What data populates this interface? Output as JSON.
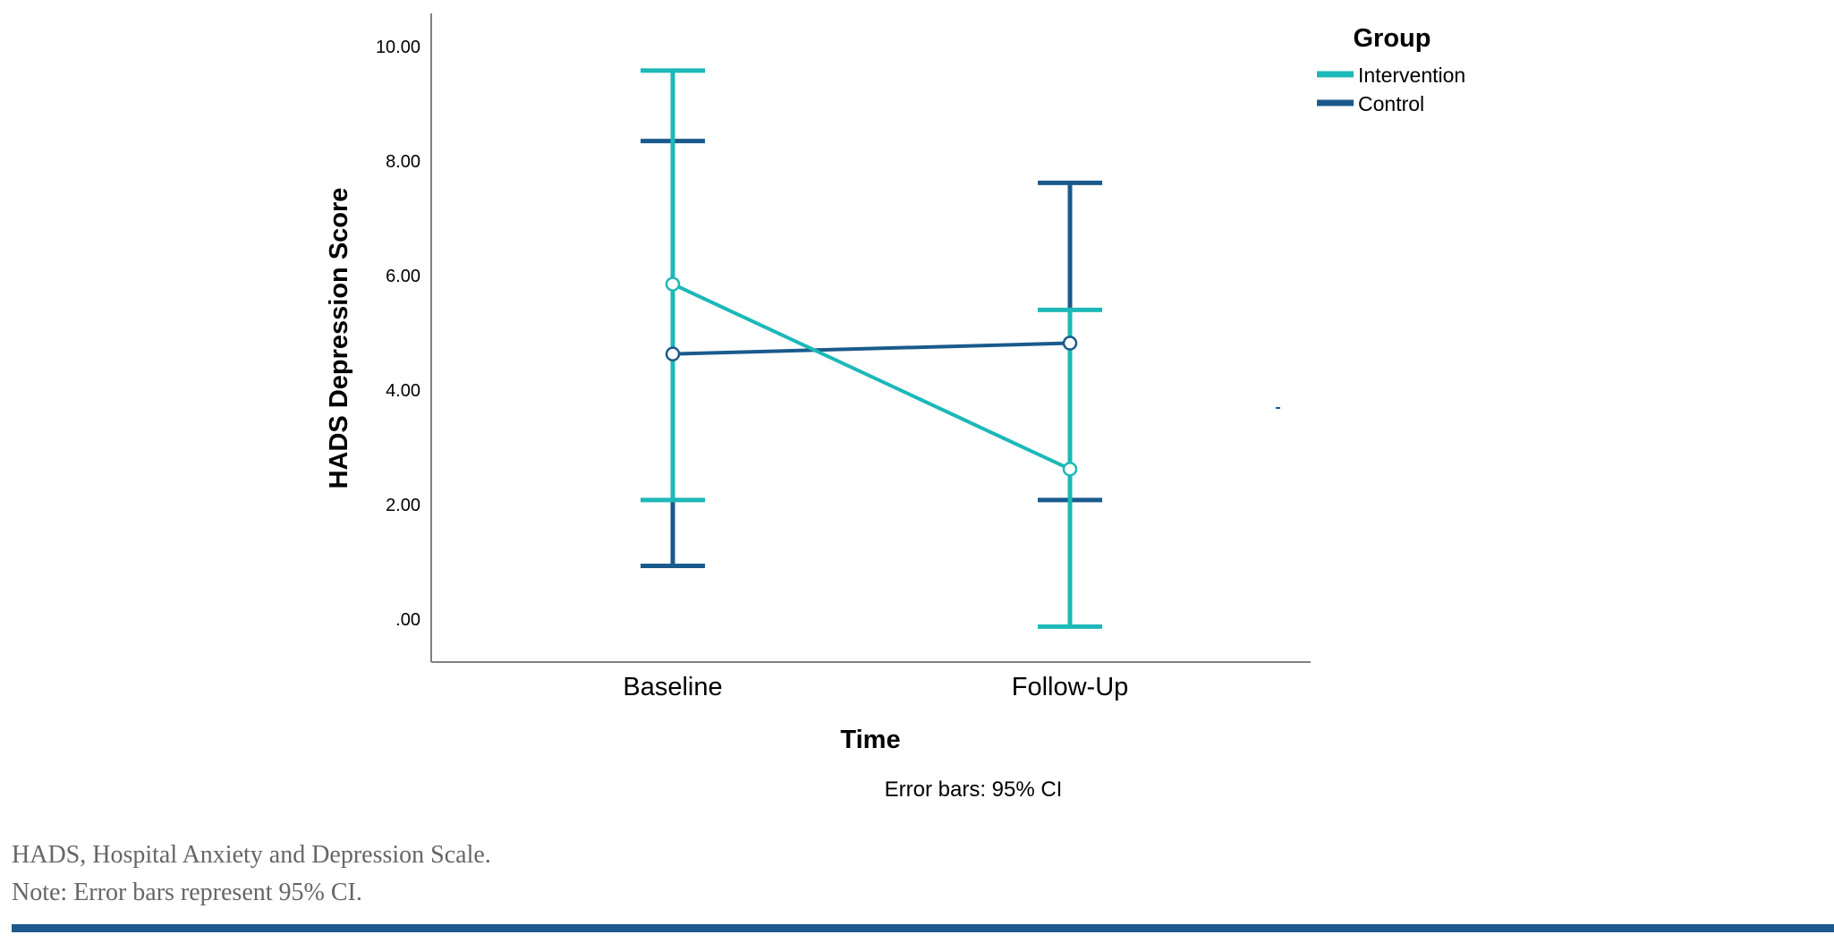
{
  "chart_data": {
    "type": "line",
    "xlabel": "Time",
    "ylabel": "HADS Depression Score",
    "categories": [
      "Baseline",
      "Follow-Up"
    ],
    "ylim": [
      -0.7,
      10.6
    ],
    "yticks": [
      0,
      2,
      4,
      6,
      8,
      10
    ],
    "ytick_labels": [
      ".00",
      "2.00",
      "4.00",
      "6.00",
      "8.00",
      "10.00"
    ],
    "legend": {
      "title": "Group",
      "placement": "top-right"
    },
    "series": [
      {
        "name": "Intervention",
        "color": "#1db8b8",
        "values": [
          5.85,
          2.62
        ],
        "ci_lower": [
          2.08,
          -0.13
        ],
        "ci_upper": [
          9.58,
          5.4
        ]
      },
      {
        "name": "Control",
        "color": "#1a5a8c",
        "values": [
          4.63,
          4.82
        ],
        "ci_lower": [
          0.93,
          2.08
        ],
        "ci_upper": [
          8.35,
          7.62
        ]
      }
    ],
    "annotation": "Error bars: 95% CI",
    "grid": false
  },
  "captions": {
    "line1": "HADS, Hospital Anxiety and Depression Scale.",
    "line2": "Note: Error bars represent 95% CI."
  },
  "colors": {
    "rule": "#1a5a8c",
    "axis": "#808080"
  }
}
